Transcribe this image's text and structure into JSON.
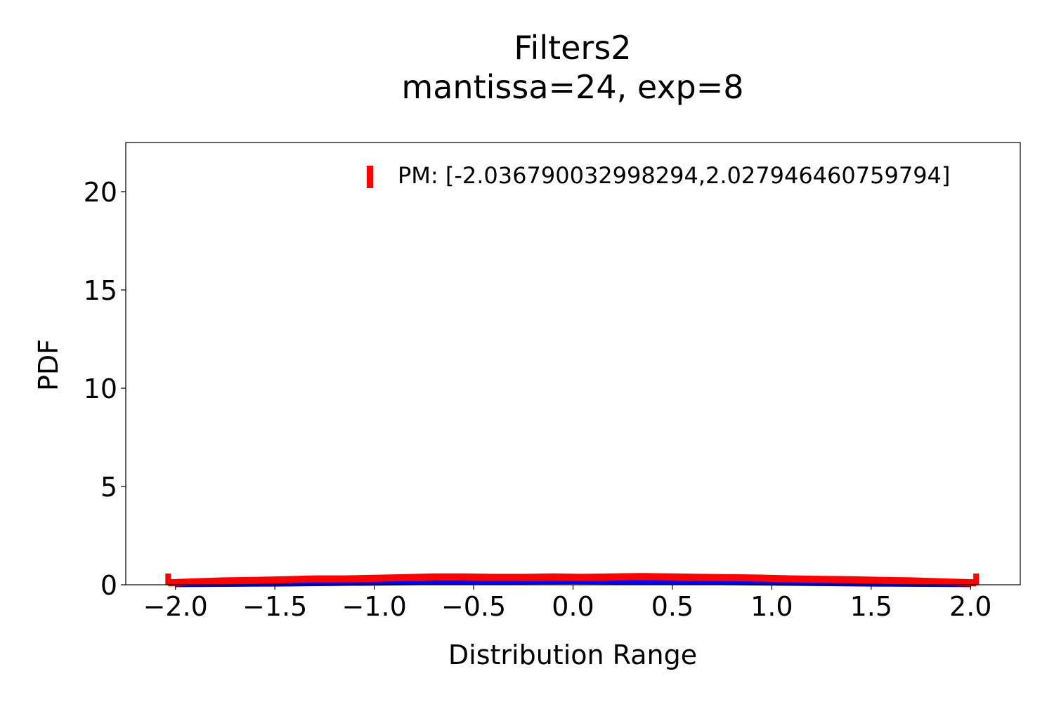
{
  "chart_data": {
    "type": "line",
    "title": "Filters2",
    "subtitle": "mantissa=24, exp=8",
    "xlabel": "Distribution Range",
    "ylabel": "PDF",
    "xlim": [
      -2.25,
      2.25
    ],
    "ylim": [
      0,
      22.5
    ],
    "xticks": [
      -2.0,
      -1.5,
      -1.0,
      -0.5,
      0.0,
      0.5,
      1.0,
      1.5,
      2.0
    ],
    "xtick_labels": [
      "−2.0",
      "−1.5",
      "−1.0",
      "−0.5",
      "0.0",
      "0.5",
      "1.0",
      "1.5",
      "2.0"
    ],
    "yticks": [
      0,
      5,
      10,
      15,
      20
    ],
    "ytick_labels": [
      "0",
      "5",
      "10",
      "15",
      "20"
    ],
    "grid": false,
    "legend_position": "top-right",
    "series": [
      {
        "name": "PM: [-2.036790032998294,2.027946460759794]",
        "color": "#ff0000",
        "x": [
          -2.037,
          -1.9,
          -1.75,
          -1.6,
          -1.45,
          -1.3,
          -1.15,
          -1.0,
          -0.85,
          -0.7,
          -0.55,
          -0.4,
          -0.25,
          -0.1,
          0.05,
          0.2,
          0.35,
          0.5,
          0.65,
          0.8,
          0.95,
          1.1,
          1.25,
          1.4,
          1.55,
          1.7,
          1.85,
          2.028
        ],
        "y": [
          0.1,
          0.15,
          0.2,
          0.22,
          0.26,
          0.3,
          0.3,
          0.33,
          0.36,
          0.4,
          0.4,
          0.38,
          0.38,
          0.4,
          0.38,
          0.4,
          0.42,
          0.4,
          0.38,
          0.36,
          0.34,
          0.3,
          0.28,
          0.26,
          0.22,
          0.2,
          0.15,
          0.1
        ]
      },
      {
        "name": "",
        "color": "#0000ff",
        "x": [
          -2.0,
          -1.5,
          -1.0,
          -0.5,
          0.0,
          0.5,
          1.0,
          1.5,
          2.0
        ],
        "y": [
          0.02,
          0.05,
          0.1,
          0.15,
          0.17,
          0.15,
          0.1,
          0.05,
          0.02
        ]
      }
    ],
    "edge_marks": [
      -2.037,
      2.028
    ]
  }
}
